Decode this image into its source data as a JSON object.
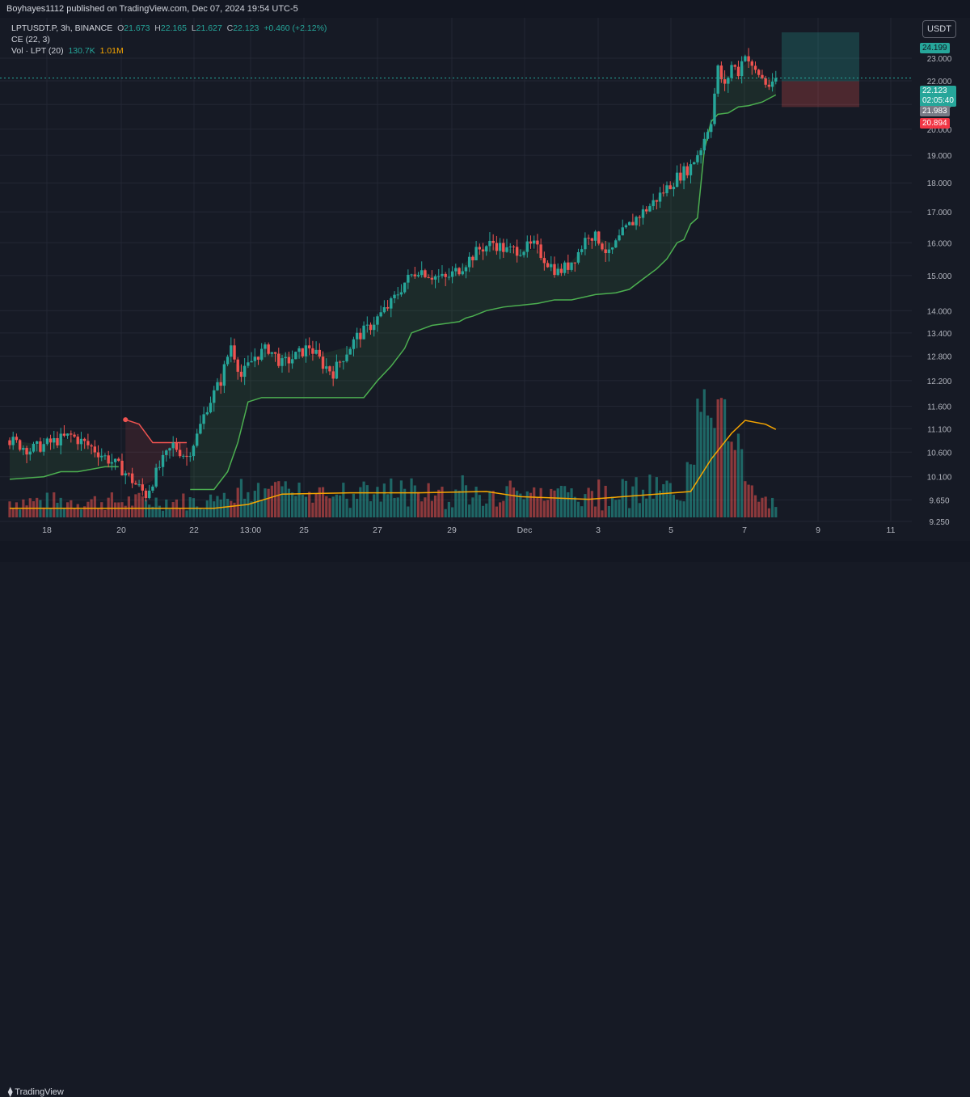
{
  "header": {
    "publisher": "Boyhayes1112 published on TradingView.com, Dec 07, 2024 19:54 UTC-5"
  },
  "legend": {
    "symbol": "LPTUSDT.P, 3h, BINANCE",
    "o_label": "O",
    "o_value": "21.673",
    "h_label": "H",
    "h_value": "22.165",
    "l_label": "L",
    "l_value": "21.627",
    "c_label": "C",
    "c_value": "22.123",
    "change": "+0.460 (+2.12%)",
    "ce_label": "CE (22, 3)",
    "vol_label": "Vol · LPT (20)",
    "vol_value": "130.7K",
    "vol_ma": "1.01M"
  },
  "currency": "USDT",
  "price_tags": {
    "target": "24.199",
    "current": "22.123",
    "countdown": "02:05:40",
    "entry": "21.983",
    "stop": "20.894"
  },
  "footer": {
    "logo": "TradingView"
  },
  "colors": {
    "up": "#26a69a",
    "down": "#ef5350",
    "ce_line": "#4caf50",
    "ce_short": "#ef5350",
    "vol_ma": "#f7a600",
    "background": "#161a25"
  },
  "chart_data": {
    "type": "candlestick",
    "timeframe": "3h",
    "y_axis_scale": "log",
    "y_ticks": [
      "23.000",
      "22.000",
      "21.000",
      "20.000",
      "19.000",
      "18.000",
      "17.000",
      "16.000",
      "15.000",
      "14.000",
      "13.400",
      "12.800",
      "12.200",
      "11.600",
      "11.100",
      "10.600",
      "10.100",
      "9.650",
      "9.250"
    ],
    "x_ticks": [
      "18",
      "20",
      "22",
      "13:00",
      "25",
      "27",
      "29",
      "Dec",
      "3",
      "5",
      "7",
      "9",
      "11"
    ],
    "ylim": [
      9.25,
      24.2
    ],
    "price_path": [
      [
        0,
        10.85
      ],
      [
        6,
        10.65
      ],
      [
        12,
        10.8
      ],
      [
        18,
        10.95
      ],
      [
        24,
        10.7
      ],
      [
        28,
        10.5
      ],
      [
        33,
        10.25
      ],
      [
        37,
        9.95
      ],
      [
        40,
        9.75
      ],
      [
        44,
        10.3
      ],
      [
        48,
        10.75
      ],
      [
        52,
        10.5
      ],
      [
        55,
        10.95
      ],
      [
        58,
        11.6
      ],
      [
        62,
        12.2
      ],
      [
        65,
        13.1
      ],
      [
        68,
        12.3
      ],
      [
        72,
        12.8
      ],
      [
        76,
        13.0
      ],
      [
        80,
        12.6
      ],
      [
        84,
        12.8
      ],
      [
        88,
        13.05
      ],
      [
        92,
        12.6
      ],
      [
        95,
        12.4
      ],
      [
        98,
        12.8
      ],
      [
        102,
        13.3
      ],
      [
        105,
        13.5
      ],
      [
        108,
        13.8
      ],
      [
        112,
        14.2
      ],
      [
        116,
        14.8
      ],
      [
        120,
        15.2
      ],
      [
        124,
        15.0
      ],
      [
        128,
        14.9
      ],
      [
        132,
        15.2
      ],
      [
        135,
        15.5
      ],
      [
        138,
        15.8
      ],
      [
        142,
        16.0
      ],
      [
        146,
        15.75
      ],
      [
        150,
        15.8
      ],
      [
        154,
        15.9
      ],
      [
        158,
        15.4
      ],
      [
        161,
        15.1
      ],
      [
        164,
        15.3
      ],
      [
        167,
        15.7
      ],
      [
        170,
        16.3
      ],
      [
        173,
        16.1
      ],
      [
        176,
        15.6
      ],
      [
        180,
        16.3
      ],
      [
        184,
        16.8
      ],
      [
        188,
        17.2
      ],
      [
        192,
        17.7
      ],
      [
        196,
        18.2
      ],
      [
        200,
        18.6
      ],
      [
        203,
        19.3
      ],
      [
        206,
        20.4
      ],
      [
        208,
        22.5
      ],
      [
        210,
        21.7
      ],
      [
        212,
        22.7
      ],
      [
        214,
        22.4
      ],
      [
        216,
        23.3
      ],
      [
        218,
        22.5
      ],
      [
        220,
        22.3
      ],
      [
        222,
        21.9
      ],
      [
        224,
        21.7
      ],
      [
        225,
        22.12
      ]
    ],
    "ce_line_long_1": [
      [
        0,
        10.05
      ],
      [
        10,
        10.1
      ],
      [
        15,
        10.2
      ],
      [
        20,
        10.2
      ],
      [
        28,
        10.3
      ],
      [
        32,
        10.3
      ]
    ],
    "ce_line_short": [
      [
        34,
        11.3
      ],
      [
        38,
        11.2
      ],
      [
        42,
        10.8
      ],
      [
        46,
        10.8
      ],
      [
        52,
        10.8
      ]
    ],
    "ce_line_long_2": [
      [
        53,
        9.85
      ],
      [
        60,
        9.85
      ],
      [
        64,
        10.2
      ],
      [
        67,
        10.8
      ],
      [
        70,
        11.7
      ],
      [
        74,
        11.8
      ],
      [
        90,
        11.8
      ],
      [
        100,
        11.8
      ],
      [
        104,
        11.8
      ],
      [
        108,
        12.2
      ],
      [
        112,
        12.55
      ],
      [
        116,
        13.0
      ],
      [
        118,
        13.4
      ],
      [
        121,
        13.5
      ],
      [
        124,
        13.6
      ],
      [
        128,
        13.65
      ],
      [
        132,
        13.7
      ],
      [
        134,
        13.8
      ],
      [
        136,
        13.85
      ],
      [
        140,
        14.0
      ],
      [
        145,
        14.1
      ],
      [
        150,
        14.15
      ],
      [
        155,
        14.2
      ],
      [
        160,
        14.3
      ],
      [
        165,
        14.3
      ],
      [
        172,
        14.45
      ],
      [
        178,
        14.5
      ],
      [
        182,
        14.6
      ],
      [
        186,
        14.9
      ],
      [
        190,
        15.2
      ],
      [
        193,
        15.5
      ],
      [
        196,
        16.0
      ],
      [
        198,
        16.1
      ],
      [
        200,
        16.6
      ],
      [
        202,
        16.8
      ],
      [
        204,
        19.2
      ],
      [
        206,
        20.3
      ],
      [
        208,
        20.6
      ],
      [
        211,
        20.65
      ],
      [
        214,
        20.9
      ],
      [
        217,
        20.95
      ],
      [
        221,
        21.1
      ],
      [
        225,
        21.4
      ]
    ],
    "volume": {
      "ma_path": [
        [
          0,
          0.07
        ],
        [
          30,
          0.07
        ],
        [
          60,
          0.07
        ],
        [
          70,
          0.1
        ],
        [
          80,
          0.18
        ],
        [
          100,
          0.19
        ],
        [
          120,
          0.19
        ],
        [
          140,
          0.2
        ],
        [
          150,
          0.16
        ],
        [
          170,
          0.14
        ],
        [
          190,
          0.18
        ],
        [
          200,
          0.2
        ],
        [
          206,
          0.45
        ],
        [
          212,
          0.65
        ],
        [
          216,
          0.75
        ],
        [
          222,
          0.72
        ],
        [
          225,
          0.68
        ]
      ],
      "spikes": [
        [
          200,
          0.5
        ],
        [
          203,
          1.0
        ],
        [
          206,
          0.85
        ],
        [
          209,
          0.98
        ],
        [
          212,
          0.6
        ],
        [
          214,
          0.65
        ],
        [
          217,
          0.3
        ]
      ]
    },
    "long_position": {
      "target": 24.199,
      "entry": 21.983,
      "stop": 20.894
    }
  }
}
